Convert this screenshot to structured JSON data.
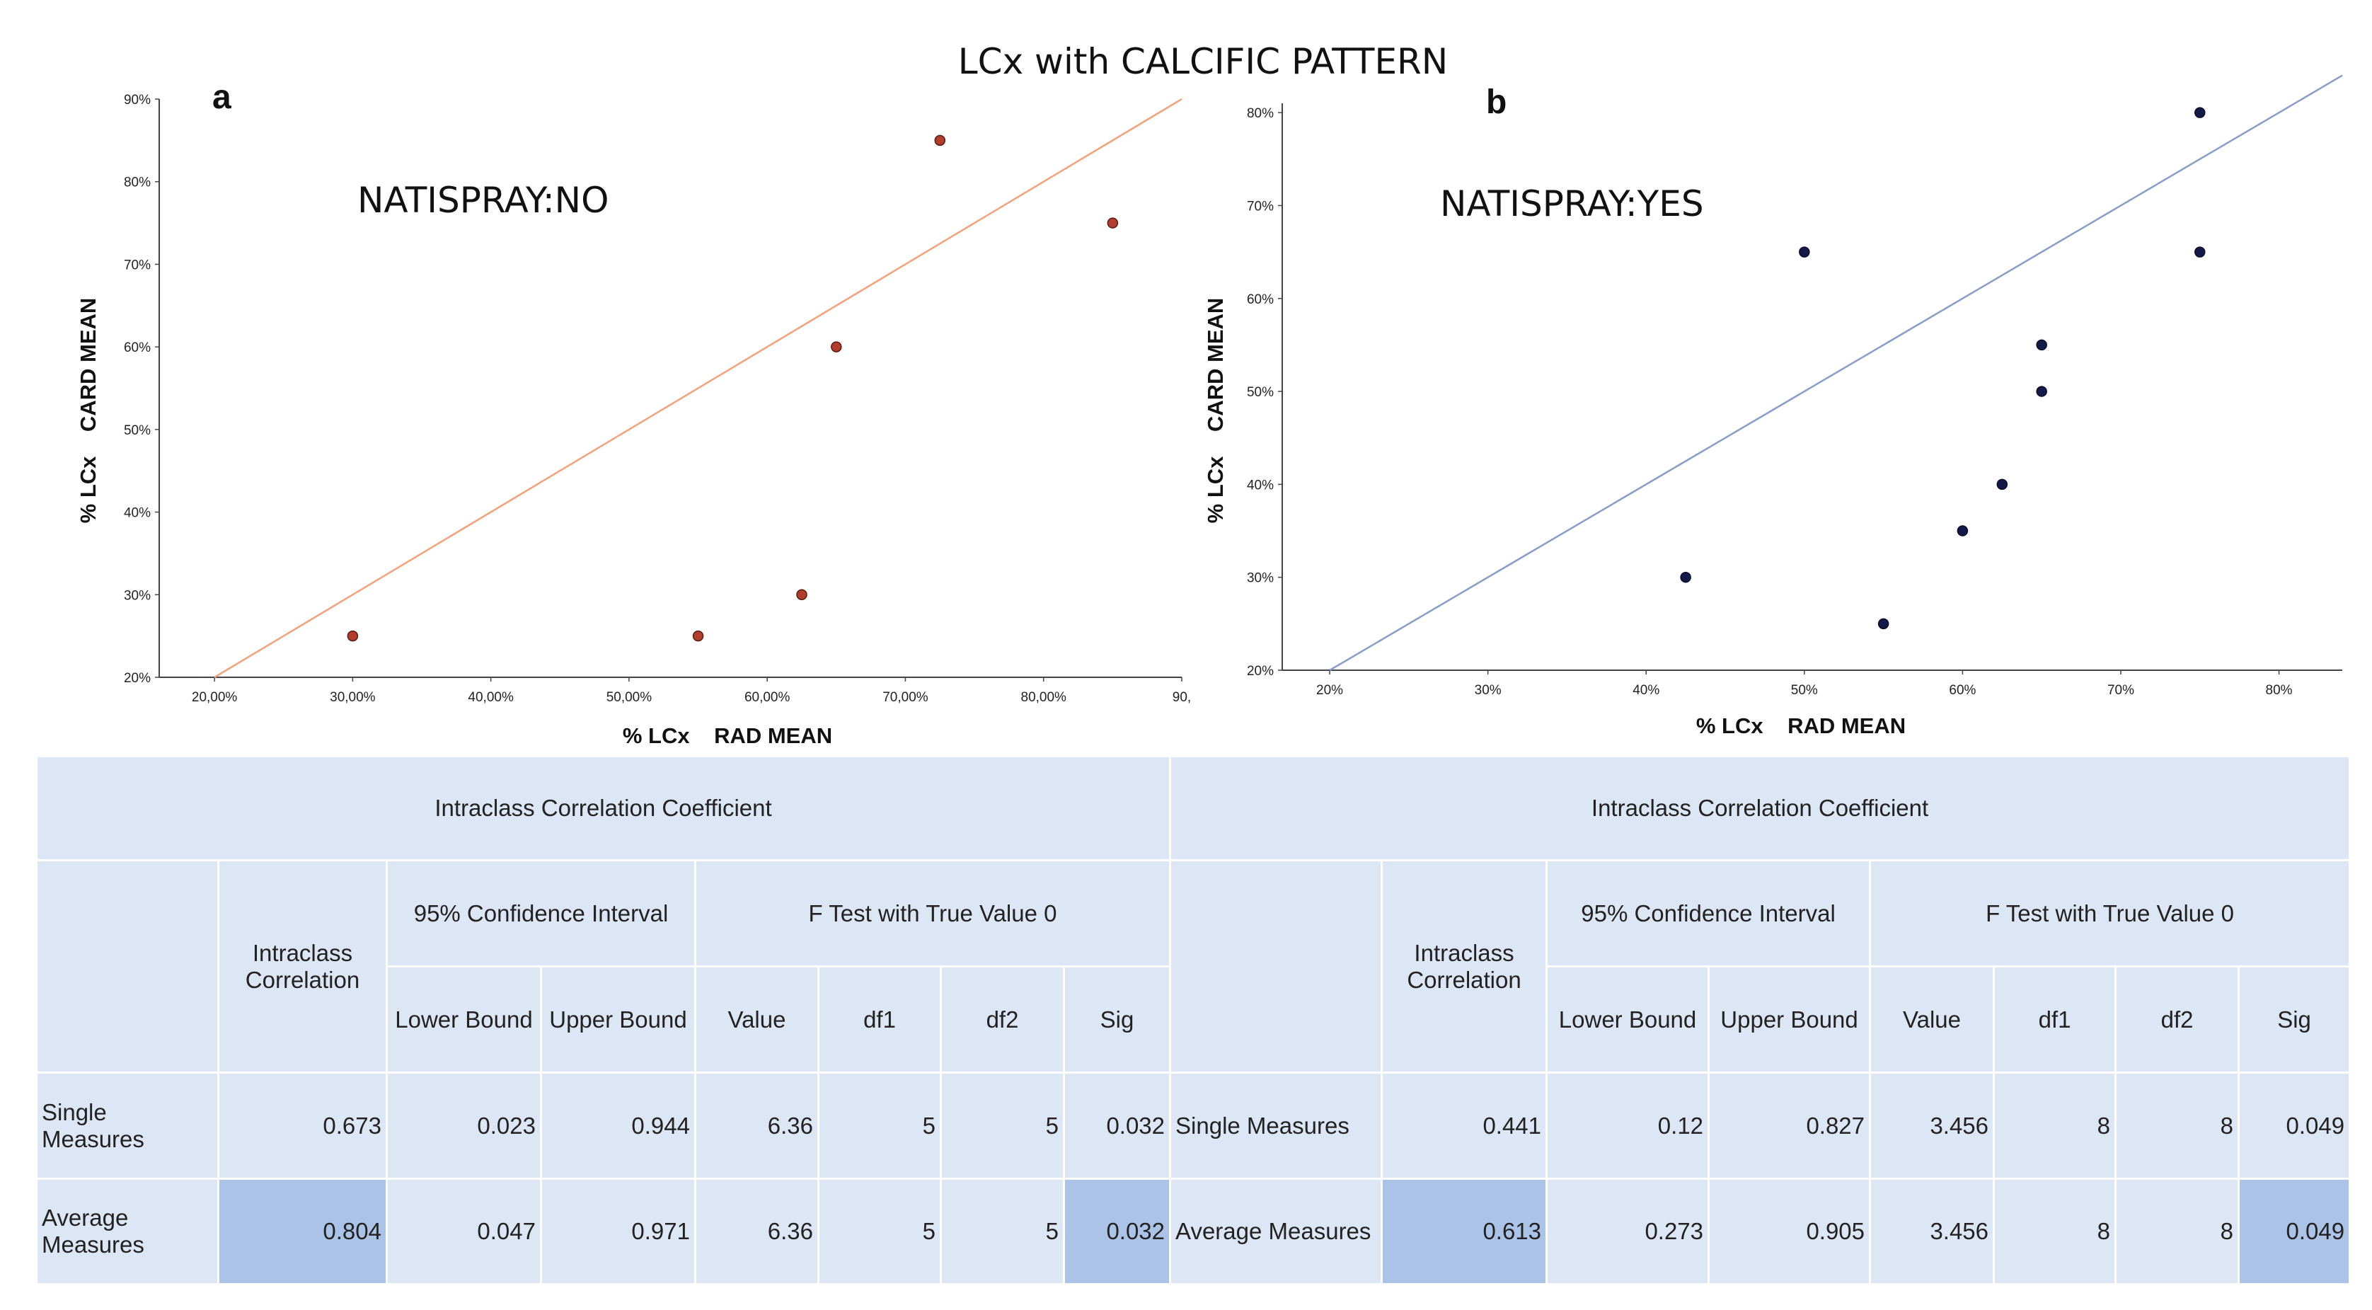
{
  "page_title": "LCx with CALCIFIC PATTERN",
  "chart_data": [
    {
      "type": "scatter",
      "panel": "a",
      "annotation": "NATISPRAY:NO",
      "xlabel": "% LCx    RAD MEAN",
      "ylabel": "% LCx    CARD MEAN",
      "xlim": [
        16,
        90
      ],
      "ylim": [
        20,
        90
      ],
      "x_ticks": [
        20,
        30,
        40,
        50,
        60,
        70,
        80,
        90
      ],
      "x_tick_labels": [
        "20,00%",
        "30,00%",
        "40,00%",
        "50,00%",
        "60,00%",
        "70,00%",
        "80,00%",
        "90,"
      ],
      "y_ticks": [
        20,
        30,
        40,
        50,
        60,
        70,
        80,
        90
      ],
      "y_tick_labels": [
        "20%",
        "30%",
        "40%",
        "50%",
        "60%",
        "70%",
        "80%",
        "90%"
      ],
      "x": [
        30,
        55,
        62.5,
        65,
        72.5,
        85
      ],
      "y": [
        25,
        25,
        30,
        60,
        85,
        75
      ],
      "fit_line": {
        "x": [
          20,
          90
        ],
        "y": [
          20,
          90
        ]
      },
      "point_color": "#b13e2c",
      "line_color": "#f4a27c"
    },
    {
      "type": "scatter",
      "panel": "b",
      "annotation": "NATISPRAY:YES",
      "xlabel": "% LCx    RAD MEAN",
      "ylabel": "% LCx    CARD MEAN",
      "xlim": [
        17,
        84
      ],
      "ylim": [
        20,
        81
      ],
      "x_ticks": [
        20,
        30,
        40,
        50,
        60,
        70,
        80
      ],
      "x_tick_labels": [
        "20%",
        "30%",
        "40%",
        "50%",
        "60%",
        "70%",
        "80%"
      ],
      "y_ticks": [
        20,
        30,
        40,
        50,
        60,
        70,
        80
      ],
      "y_tick_labels": [
        "20%",
        "30%",
        "40%",
        "50%",
        "60%",
        "70%",
        "80%"
      ],
      "x": [
        42.5,
        50,
        55,
        60,
        62.5,
        65,
        65,
        75,
        75
      ],
      "y": [
        30,
        65,
        25,
        35,
        40,
        50,
        55,
        65,
        80
      ],
      "fit_line": {
        "x": [
          20,
          84
        ],
        "y": [
          20,
          84
        ]
      },
      "point_color": "#14194a",
      "line_color": "#8a9cc9"
    }
  ],
  "tables": [
    {
      "title": "Intraclass Correlation Coefficient",
      "col_icc": "Intraclass Correlation",
      "ci_header": "95% Confidence Interval",
      "ftest_header": "F Test with True Value 0",
      "lower": "Lower Bound",
      "upper": "Upper Bound",
      "value": "Value",
      "df1": "df1",
      "df2": "df2",
      "sig": "Sig",
      "rows": [
        {
          "label": "Single Measures",
          "icc": "0.673",
          "lower": "0.023",
          "upper": "0.944",
          "value": "6.36",
          "df1": "5",
          "df2": "5",
          "sig": "0.032"
        },
        {
          "label": "Average Measures",
          "icc": "0.804",
          "lower": "0.047",
          "upper": "0.971",
          "value": "6.36",
          "df1": "5",
          "df2": "5",
          "sig": "0.032"
        }
      ]
    },
    {
      "title": "Intraclass Correlation Coefficient",
      "col_icc": "Intraclass Correlation",
      "ci_header": "95% Confidence Interval",
      "ftest_header": "F Test with True Value 0",
      "lower": "Lower Bound",
      "upper": "Upper Bound",
      "value": "Value",
      "df1": "df1",
      "df2": "df2",
      "sig": "Sig",
      "rows": [
        {
          "label": "Single Measures",
          "icc": "0.441",
          "lower": "0.12",
          "upper": "0.827",
          "value": "3.456",
          "df1": "8",
          "df2": "8",
          "sig": "0.049"
        },
        {
          "label": "Average Measures",
          "icc": "0.613",
          "lower": "0.273",
          "upper": "0.905",
          "value": "3.456",
          "df1": "8",
          "df2": "8",
          "sig": "0.049"
        }
      ]
    }
  ]
}
